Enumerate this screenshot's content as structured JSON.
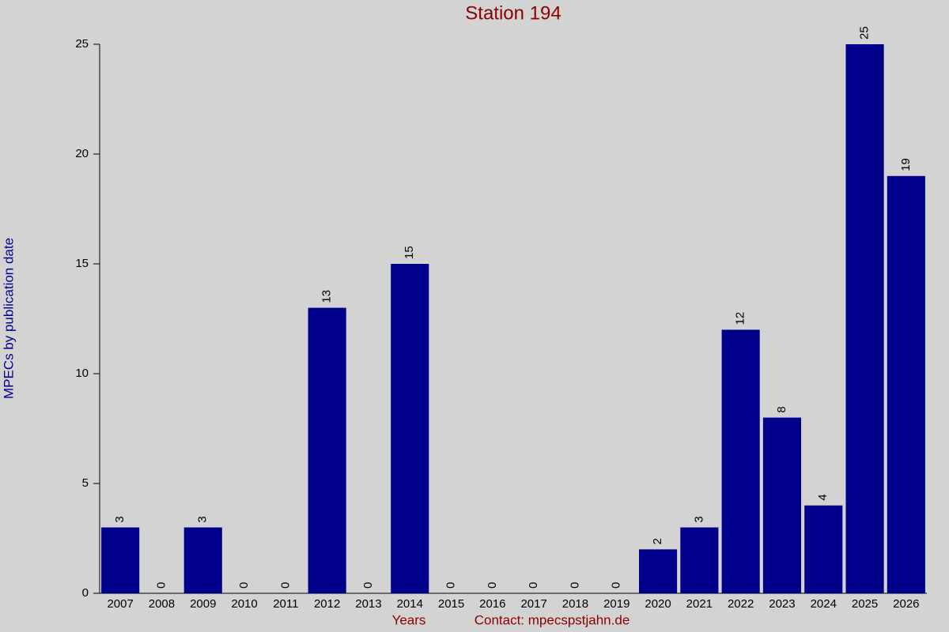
{
  "chart_data": {
    "type": "bar",
    "title": "Station 194",
    "x_label": "Years",
    "contact": "Contact: mpecspstjahn.de",
    "y_label": "MPECs by publication date",
    "categories": [
      "2007",
      "2008",
      "2009",
      "2010",
      "2011",
      "2012",
      "2013",
      "2014",
      "2015",
      "2016",
      "2017",
      "2018",
      "2019",
      "2020",
      "2021",
      "2022",
      "2023",
      "2024",
      "2025",
      "2026"
    ],
    "values": [
      3,
      0,
      3,
      0,
      0,
      13,
      0,
      15,
      0,
      0,
      0,
      0,
      0,
      2,
      3,
      12,
      8,
      4,
      25,
      19
    ],
    "color": "#00008b",
    "ylim": [
      0,
      25
    ],
    "yticks": [
      0,
      5,
      10,
      15,
      20,
      25
    ]
  }
}
